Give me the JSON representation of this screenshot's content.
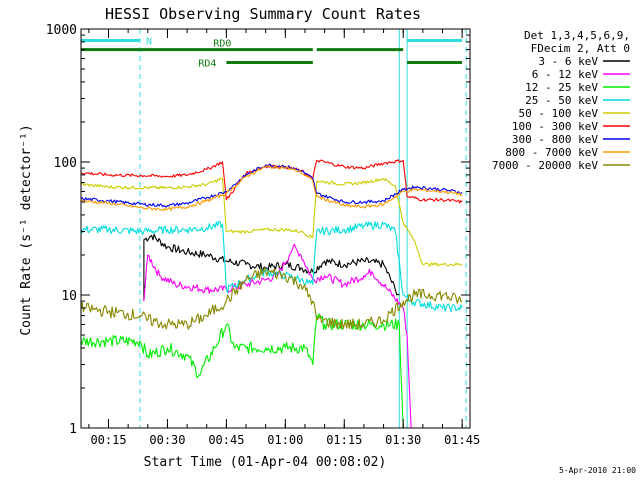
{
  "chart_data": {
    "type": "line",
    "title": "HESSI Observing Summary Count Rates",
    "xlabel": "Start Time (01-Apr-04 00:08:02)",
    "ylabel": "Count Rate (s⁻¹ detector⁻¹)",
    "yscale": "log",
    "ylim": [
      1,
      1000
    ],
    "xlim": [
      "00:08",
      "01:47"
    ],
    "x_ticks": [
      "00:15",
      "00:30",
      "00:45",
      "01:00",
      "01:15",
      "01:30",
      "01:45"
    ],
    "y_ticks": [
      "1",
      "10",
      "100",
      "1000"
    ],
    "timestamp": "5-Apr-2010 21:00",
    "legend": {
      "placement": "top-right",
      "header": [
        "Det 1,3,4,5,6,9,",
        "FDecim 2, Att 0"
      ]
    },
    "flags": [
      {
        "label": "N",
        "color": "#33dddd",
        "segments": [
          [
            "00:08",
            "00:23"
          ],
          [
            "01:31",
            "01:45"
          ]
        ],
        "level": 820
      },
      {
        "label": "RD0",
        "color": "#107a10",
        "segments": [
          [
            "00:08",
            "01:30"
          ]
        ],
        "gaps": [
          [
            "01:07",
            "01:08"
          ]
        ],
        "level": 700
      },
      {
        "label": "RD4",
        "color": "#107a10",
        "segments": [
          [
            "00:45",
            "01:07"
          ],
          [
            "01:31",
            "01:45"
          ]
        ],
        "level": 560
      }
    ],
    "vlines": [
      {
        "x": "00:08",
        "color": "#33dddd",
        "style": "solid"
      },
      {
        "x": "00:23",
        "color": "#33dddd",
        "style": "dashed"
      },
      {
        "x": "01:29",
        "color": "#33dddd",
        "style": "solid"
      },
      {
        "x": "01:31",
        "color": "#33dddd",
        "style": "solid"
      },
      {
        "x": "01:46",
        "color": "#33dddd",
        "style": "dashed"
      }
    ],
    "series": [
      {
        "name": "3 - 6 keV",
        "color": "#000000",
        "points": [
          [
            "00:24",
            9
          ],
          [
            "00:24",
            26
          ],
          [
            "00:26",
            28
          ],
          [
            "00:30",
            23
          ],
          [
            "00:35",
            21
          ],
          [
            "00:40",
            20
          ],
          [
            "00:45",
            18
          ],
          [
            "00:50",
            17
          ],
          [
            "00:55",
            16
          ],
          [
            "01:00",
            17
          ],
          [
            "01:04",
            16
          ],
          [
            "01:07",
            15
          ],
          [
            "01:10",
            18
          ],
          [
            "01:15",
            17
          ],
          [
            "01:20",
            18
          ],
          [
            "01:25",
            17
          ],
          [
            "01:28",
            11
          ],
          [
            "01:29",
            10
          ]
        ]
      },
      {
        "name": "6 - 12 keV",
        "color": "#ff00ff",
        "points": [
          [
            "00:24",
            9
          ],
          [
            "00:25",
            20
          ],
          [
            "00:28",
            14
          ],
          [
            "00:32",
            12
          ],
          [
            "00:40",
            11
          ],
          [
            "00:45",
            11
          ],
          [
            "00:50",
            12
          ],
          [
            "00:55",
            13
          ],
          [
            "00:58",
            14
          ],
          [
            "01:01",
            20
          ],
          [
            "01:02",
            23
          ],
          [
            "01:04",
            20
          ],
          [
            "01:07",
            13
          ],
          [
            "01:10",
            14
          ],
          [
            "01:15",
            12
          ],
          [
            "01:20",
            14
          ],
          [
            "01:22",
            15
          ],
          [
            "01:26",
            11
          ],
          [
            "01:30",
            8
          ],
          [
            "01:31",
            5
          ],
          [
            "01:32",
            1
          ]
        ]
      },
      {
        "name": "12 - 25 keV",
        "color": "#00ee00",
        "points": [
          [
            "00:08",
            4.5
          ],
          [
            "00:15",
            4.5
          ],
          [
            "00:23",
            4.5
          ],
          [
            "00:25",
            3.5
          ],
          [
            "00:30",
            4
          ],
          [
            "00:35",
            3.5
          ],
          [
            "00:38",
            2.5
          ],
          [
            "00:42",
            4
          ],
          [
            "00:45",
            6
          ],
          [
            "00:47",
            4
          ],
          [
            "00:50",
            4
          ],
          [
            "00:55",
            4
          ],
          [
            "01:00",
            4
          ],
          [
            "01:05",
            4
          ],
          [
            "01:07",
            3
          ],
          [
            "01:08",
            7
          ],
          [
            "01:10",
            6
          ],
          [
            "01:15",
            6
          ],
          [
            "01:20",
            6
          ],
          [
            "01:25",
            6
          ],
          [
            "01:29",
            6
          ],
          [
            "01:30",
            1
          ]
        ]
      },
      {
        "name": "25 - 50 keV",
        "color": "#00dddd",
        "points": [
          [
            "00:08",
            31
          ],
          [
            "00:15",
            31
          ],
          [
            "00:24",
            30
          ],
          [
            "00:30",
            31
          ],
          [
            "00:35",
            31
          ],
          [
            "00:40",
            32
          ],
          [
            "00:44",
            34
          ],
          [
            "00:45",
            11
          ],
          [
            "00:50",
            13
          ],
          [
            "00:55",
            15
          ],
          [
            "01:00",
            14
          ],
          [
            "01:04",
            13
          ],
          [
            "01:07",
            12
          ],
          [
            "01:08",
            30
          ],
          [
            "01:15",
            31
          ],
          [
            "01:20",
            33
          ],
          [
            "01:25",
            34
          ],
          [
            "01:28",
            30
          ],
          [
            "01:30",
            10
          ],
          [
            "01:32",
            9
          ],
          [
            "01:40",
            8
          ],
          [
            "01:45",
            8
          ]
        ]
      },
      {
        "name": "50 - 100 keV",
        "color": "#cccc00",
        "points": [
          [
            "00:08",
            68
          ],
          [
            "00:15",
            65
          ],
          [
            "00:24",
            64
          ],
          [
            "00:30",
            64
          ],
          [
            "00:35",
            65
          ],
          [
            "00:40",
            68
          ],
          [
            "00:44",
            75
          ],
          [
            "00:45",
            30
          ],
          [
            "00:50",
            30
          ],
          [
            "00:55",
            31
          ],
          [
            "01:00",
            31
          ],
          [
            "01:04",
            30
          ],
          [
            "01:07",
            27
          ],
          [
            "01:08",
            72
          ],
          [
            "01:15",
            68
          ],
          [
            "01:20",
            70
          ],
          [
            "01:25",
            75
          ],
          [
            "01:28",
            66
          ],
          [
            "01:30",
            35
          ],
          [
            "01:33",
            25
          ],
          [
            "01:35",
            17
          ],
          [
            "01:40",
            17
          ],
          [
            "01:45",
            17
          ]
        ]
      },
      {
        "name": "100 - 300 keV",
        "color": "#ff0000",
        "points": [
          [
            "00:08",
            83
          ],
          [
            "00:15",
            80
          ],
          [
            "00:24",
            79
          ],
          [
            "00:30",
            78
          ],
          [
            "00:35",
            80
          ],
          [
            "00:40",
            88
          ],
          [
            "00:44",
            100
          ],
          [
            "00:45",
            52
          ],
          [
            "00:50",
            82
          ],
          [
            "00:55",
            93
          ],
          [
            "01:00",
            92
          ],
          [
            "01:04",
            86
          ],
          [
            "01:07",
            75
          ],
          [
            "01:08",
            103
          ],
          [
            "01:15",
            92
          ],
          [
            "01:20",
            90
          ],
          [
            "01:25",
            98
          ],
          [
            "01:30",
            103
          ],
          [
            "01:31",
            55
          ],
          [
            "01:35",
            52
          ],
          [
            "01:40",
            52
          ],
          [
            "01:45",
            50
          ]
        ]
      },
      {
        "name": "300 - 800 keV",
        "color": "#0000ee",
        "points": [
          [
            "00:08",
            53
          ],
          [
            "00:15",
            51
          ],
          [
            "00:24",
            48
          ],
          [
            "00:30",
            47
          ],
          [
            "00:35",
            49
          ],
          [
            "00:40",
            54
          ],
          [
            "00:45",
            60
          ],
          [
            "00:50",
            80
          ],
          [
            "00:55",
            95
          ],
          [
            "01:00",
            93
          ],
          [
            "01:04",
            86
          ],
          [
            "01:07",
            75
          ],
          [
            "01:08",
            58
          ],
          [
            "01:15",
            50
          ],
          [
            "01:20",
            50
          ],
          [
            "01:25",
            51
          ],
          [
            "01:30",
            62
          ],
          [
            "01:33",
            65
          ],
          [
            "01:40",
            62
          ],
          [
            "01:45",
            59
          ]
        ]
      },
      {
        "name": "800 - 7000 keV",
        "color": "#ff9900",
        "points": [
          [
            "00:08",
            51
          ],
          [
            "00:15",
            49
          ],
          [
            "00:24",
            45
          ],
          [
            "00:30",
            44
          ],
          [
            "00:35",
            46
          ],
          [
            "00:40",
            51
          ],
          [
            "00:45",
            58
          ],
          [
            "00:50",
            78
          ],
          [
            "00:55",
            92
          ],
          [
            "01:00",
            91
          ],
          [
            "01:04",
            84
          ],
          [
            "01:07",
            72
          ],
          [
            "01:08",
            55
          ],
          [
            "01:15",
            47
          ],
          [
            "01:20",
            46
          ],
          [
            "01:25",
            48
          ],
          [
            "01:30",
            60
          ],
          [
            "01:33",
            62
          ],
          [
            "01:40",
            60
          ],
          [
            "01:45",
            57
          ]
        ]
      },
      {
        "name": "7000 - 20000 keV",
        "color": "#888800",
        "points": [
          [
            "00:08",
            8
          ],
          [
            "00:15",
            7.5
          ],
          [
            "00:23",
            7
          ],
          [
            "00:25",
            6.5
          ],
          [
            "00:30",
            6
          ],
          [
            "00:35",
            6
          ],
          [
            "00:40",
            7
          ],
          [
            "00:45",
            9
          ],
          [
            "00:50",
            13
          ],
          [
            "00:55",
            15
          ],
          [
            "01:00",
            14
          ],
          [
            "01:04",
            12
          ],
          [
            "01:07",
            9
          ],
          [
            "01:08",
            6.5
          ],
          [
            "01:15",
            6
          ],
          [
            "01:20",
            6
          ],
          [
            "01:25",
            6.5
          ],
          [
            "01:30",
            9
          ],
          [
            "01:33",
            10
          ],
          [
            "01:40",
            10
          ],
          [
            "01:45",
            9
          ]
        ]
      }
    ]
  }
}
